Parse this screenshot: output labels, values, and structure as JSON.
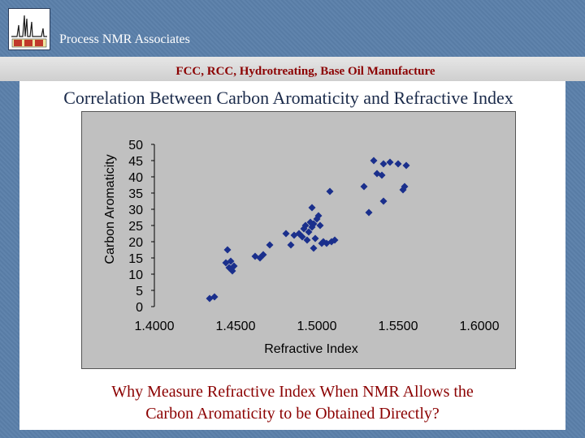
{
  "header": {
    "company": "Process NMR Associates",
    "subtitle": "FCC, RCC, Hydrotreating, Base Oil Manufacture"
  },
  "colors": {
    "marker": "#1a2f8c",
    "title_red": "#8b0000",
    "slide_bg": "#5b80aa"
  },
  "chart_data": {
    "type": "scatter",
    "title": "Correlation Between Carbon Aromaticity and Refractive Index",
    "xlabel": "Refractive Index",
    "ylabel": "Carbon Aromaticity",
    "xlim": [
      1.4,
      1.6
    ],
    "ylim": [
      0,
      50
    ],
    "x_ticks": [
      "1.4000",
      "1.4500",
      "1.5000",
      "1.5500",
      "1.6000"
    ],
    "y_ticks": [
      "50",
      "45",
      "40",
      "35",
      "30",
      "25",
      "20",
      "15",
      "10",
      "5",
      "0"
    ],
    "grid": false,
    "legend": "none",
    "points": [
      {
        "x": 1.434,
        "y": 2.5
      },
      {
        "x": 1.437,
        "y": 3.0
      },
      {
        "x": 1.444,
        "y": 13.5
      },
      {
        "x": 1.446,
        "y": 12.0
      },
      {
        "x": 1.445,
        "y": 17.5
      },
      {
        "x": 1.447,
        "y": 14.0
      },
      {
        "x": 1.448,
        "y": 11.0
      },
      {
        "x": 1.449,
        "y": 12.5
      },
      {
        "x": 1.462,
        "y": 15.5
      },
      {
        "x": 1.465,
        "y": 15.0
      },
      {
        "x": 1.467,
        "y": 16.0
      },
      {
        "x": 1.471,
        "y": 19.0
      },
      {
        "x": 1.481,
        "y": 22.5
      },
      {
        "x": 1.484,
        "y": 19.0
      },
      {
        "x": 1.486,
        "y": 22.0
      },
      {
        "x": 1.489,
        "y": 22.5
      },
      {
        "x": 1.491,
        "y": 21.5
      },
      {
        "x": 1.492,
        "y": 24.0
      },
      {
        "x": 1.493,
        "y": 25.0
      },
      {
        "x": 1.494,
        "y": 20.5
      },
      {
        "x": 1.495,
        "y": 23.0
      },
      {
        "x": 1.496,
        "y": 26.0
      },
      {
        "x": 1.497,
        "y": 24.5
      },
      {
        "x": 1.497,
        "y": 30.5
      },
      {
        "x": 1.498,
        "y": 18.0
      },
      {
        "x": 1.498,
        "y": 25.5
      },
      {
        "x": 1.499,
        "y": 21.0
      },
      {
        "x": 1.5,
        "y": 27.0
      },
      {
        "x": 1.501,
        "y": 28.0
      },
      {
        "x": 1.502,
        "y": 25.0
      },
      {
        "x": 1.503,
        "y": 19.5
      },
      {
        "x": 1.504,
        "y": 20.0
      },
      {
        "x": 1.506,
        "y": 19.5
      },
      {
        "x": 1.508,
        "y": 35.5
      },
      {
        "x": 1.509,
        "y": 20.0
      },
      {
        "x": 1.511,
        "y": 20.5
      },
      {
        "x": 1.529,
        "y": 37.0
      },
      {
        "x": 1.532,
        "y": 29.0
      },
      {
        "x": 1.535,
        "y": 45.0
      },
      {
        "x": 1.537,
        "y": 41.0
      },
      {
        "x": 1.54,
        "y": 40.5
      },
      {
        "x": 1.541,
        "y": 32.5
      },
      {
        "x": 1.541,
        "y": 44.0
      },
      {
        "x": 1.545,
        "y": 44.5
      },
      {
        "x": 1.55,
        "y": 44.0
      },
      {
        "x": 1.553,
        "y": 36.0
      },
      {
        "x": 1.554,
        "y": 37.0
      },
      {
        "x": 1.555,
        "y": 43.5
      }
    ]
  },
  "footer": {
    "question_line1": "Why Measure Refractive Index When NMR Allows the",
    "question_line2": "Carbon Aromaticity to be Obtained Directly?"
  }
}
